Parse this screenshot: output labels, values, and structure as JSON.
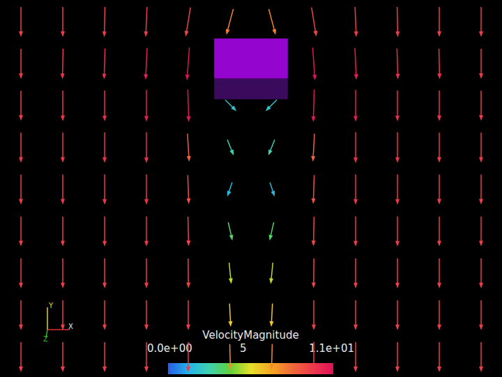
{
  "chart_data": {
    "type": "vector_field",
    "xlim": [
      -6,
      6
    ],
    "ylim": [
      -4.5,
      4.5
    ],
    "tick_labels": false,
    "grid": false,
    "vectors": {
      "x": [
        -5.5,
        -4.5,
        -3.5,
        -2.5,
        -1.5,
        -0.5,
        0.5,
        1.5,
        2.5,
        3.5,
        4.5,
        5.5
      ],
      "y": [
        4,
        3,
        2,
        1,
        0,
        -1,
        -2,
        -3,
        -4
      ],
      "u": [
        [
          0,
          0,
          -0.2,
          -0.4,
          -1.5,
          -2,
          2,
          1.5,
          0.4,
          0.2,
          0,
          0
        ],
        [
          0,
          -0.2,
          -0.3,
          -0.5,
          -0.8,
          null,
          null,
          0.8,
          0.5,
          0.3,
          0.2,
          0
        ],
        [
          0,
          0,
          0,
          0,
          0.3,
          1.5,
          -1.5,
          -0.3,
          0,
          0,
          0,
          0
        ],
        [
          0,
          0,
          0,
          0,
          0.5,
          1,
          -1,
          -0.5,
          0,
          0,
          0,
          0
        ],
        [
          0,
          0,
          0,
          0,
          0.3,
          -0.5,
          0.5,
          -0.3,
          0,
          0,
          0,
          0
        ],
        [
          0,
          0,
          0,
          0,
          0.2,
          0.8,
          -0.8,
          -0.2,
          0,
          0,
          0,
          0
        ],
        [
          0,
          0,
          0,
          0,
          0.1,
          0.5,
          -0.5,
          -0.1,
          0,
          0,
          0,
          0
        ],
        [
          0,
          0,
          0,
          0,
          0,
          0.3,
          -0.3,
          0,
          0,
          0,
          0,
          0
        ],
        [
          0,
          0,
          0,
          0,
          0,
          0.2,
          -0.2,
          0,
          0,
          0,
          0,
          0
        ]
      ],
      "v": [
        [
          -9.5,
          -9.5,
          -9.6,
          -9.6,
          -9.2,
          -7.5,
          -7.5,
          -9.2,
          -9.6,
          -9.6,
          -9.5,
          -9.5
        ],
        [
          -9.6,
          -9.8,
          -10,
          -10.5,
          -11,
          null,
          null,
          -11,
          -10.5,
          -10,
          -9.8,
          -9.6
        ],
        [
          -9.6,
          -9.8,
          -10,
          -10.5,
          -10.8,
          -1.5,
          -1.5,
          -10.8,
          -10.5,
          -10,
          -9.8,
          -9.6
        ],
        [
          -9.6,
          -9.7,
          -9.8,
          -10,
          -8.5,
          -2.5,
          -2.5,
          -8.5,
          -10,
          -9.8,
          -9.7,
          -9.6
        ],
        [
          -9.5,
          -9.6,
          -9.7,
          -9.8,
          -9,
          -1.5,
          -1.5,
          -9,
          -9.8,
          -9.7,
          -9.6,
          -9.5
        ],
        [
          -9.5,
          -9.5,
          -9.6,
          -9.7,
          -9.3,
          -3.5,
          -3.5,
          -9.3,
          -9.7,
          -9.6,
          -9.5,
          -9.5
        ],
        [
          -9.5,
          -9.5,
          -9.5,
          -9.6,
          -9.4,
          -5,
          -5,
          -9.4,
          -9.6,
          -9.5,
          -9.5,
          -9.5
        ],
        [
          -9.5,
          -9.5,
          -9.5,
          -9.5,
          -9.5,
          -6,
          -6,
          -9.5,
          -9.5,
          -9.5,
          -9.5,
          -9.5
        ],
        [
          -9.5,
          -9.5,
          -9.5,
          -9.5,
          -9.6,
          -7.5,
          -7.5,
          -9.6,
          -9.5,
          -9.5,
          -9.5,
          -9.5
        ]
      ]
    },
    "obstacle": {
      "x": [
        -0.88,
        0.88
      ],
      "y": [
        2.13,
        3.58
      ]
    },
    "colorbar": {
      "title": "VelocityMagnitude",
      "range": [
        0,
        11
      ],
      "ticks": [
        {
          "value": 0,
          "label": "0.0e+00"
        },
        5,
        {
          "value": 11,
          "label": "1.1e+01"
        }
      ]
    },
    "axes_triad_labels": [
      "Y",
      "X",
      "Z"
    ]
  }
}
